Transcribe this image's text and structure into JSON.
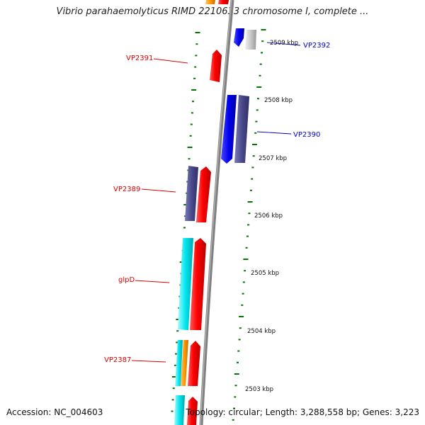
{
  "header": {
    "title": "Vibrio parahaemolyticus RIMD 2210633 chromosome I, complete ..."
  },
  "footer": {
    "accession": "Accession: NC_004603",
    "summary": "Topology: circular; Length: 3,288,558 bp; Genes: 3,223"
  },
  "colors": {
    "red_gene": "#ff0000",
    "blue_gene": "#0000ee",
    "slate_gene": "#4a4a8c",
    "cyan_gene": "#00e5ee",
    "orange_gene": "#ff9900",
    "gray_gene": "#c8c8c8",
    "tick_green": "#007700",
    "backbone": "#808080",
    "label_red": "#dd0000",
    "label_blue": "#0000cc"
  },
  "scale_labels": [
    {
      "text": "2509 kbp"
    },
    {
      "text": "2508 kbp"
    },
    {
      "text": "2507 kbp"
    },
    {
      "text": "2506 kbp"
    },
    {
      "text": "2505 kbp"
    },
    {
      "text": "2504 kbp"
    },
    {
      "text": "2503 kbp"
    }
  ],
  "gene_labels": [
    {
      "text": "VP2392",
      "color": "blue"
    },
    {
      "text": "VP2391",
      "color": "red"
    },
    {
      "text": "VP2390",
      "color": "blue"
    },
    {
      "text": "VP2389",
      "color": "red"
    },
    {
      "text": "glpD",
      "color": "red"
    },
    {
      "text": "VP2387",
      "color": "red"
    }
  ]
}
